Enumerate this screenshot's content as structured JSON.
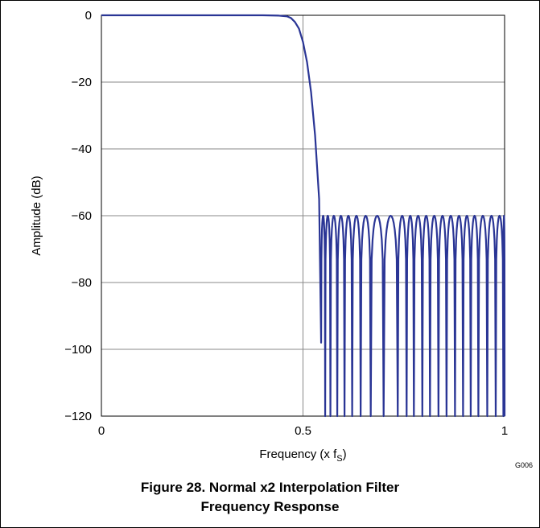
{
  "chart_data": {
    "type": "line",
    "title": "",
    "xlabel_main": "Frequency (x f",
    "xlabel_sub": "S",
    "xlabel_close": ")",
    "ylabel": "Amplitude (dB)",
    "xlim": [
      0,
      1
    ],
    "ylim": [
      -120,
      0
    ],
    "x_ticks": [
      0,
      0.5,
      1
    ],
    "x_tick_labels": [
      "0",
      "0.5",
      "1"
    ],
    "y_ticks": [
      0,
      -20,
      -40,
      -60,
      -80,
      -100,
      -120
    ],
    "y_tick_labels": [
      "0",
      "−20",
      "−40",
      "−60",
      "−80",
      "−100",
      "−120"
    ],
    "grid": true,
    "series_color": "#2a3595",
    "passband": [
      [
        0,
        0
      ],
      [
        0.4,
        0
      ],
      [
        0.44,
        -0.1
      ],
      [
        0.46,
        -0.3
      ],
      [
        0.47,
        -0.8
      ],
      [
        0.48,
        -2
      ],
      [
        0.49,
        -4
      ],
      [
        0.5,
        -8
      ],
      [
        0.51,
        -14
      ],
      [
        0.52,
        -23
      ],
      [
        0.53,
        -36
      ],
      [
        0.54,
        -55
      ]
    ],
    "stopband_peak": -60,
    "stopband_nulls": [
      [
        0.545,
        -98
      ],
      [
        0.555,
        -101
      ],
      [
        0.568,
        -102
      ],
      [
        0.585,
        -100
      ],
      [
        0.603,
        -100
      ],
      [
        0.622,
        -100
      ],
      [
        0.643,
        -100
      ],
      [
        0.668,
        -100
      ],
      [
        0.7,
        -108
      ],
      [
        0.735,
        -100
      ],
      [
        0.757,
        -120
      ],
      [
        0.775,
        -100
      ],
      [
        0.796,
        -120
      ],
      [
        0.815,
        -100
      ],
      [
        0.836,
        -120
      ],
      [
        0.856,
        -100
      ],
      [
        0.877,
        -102
      ],
      [
        0.897,
        -103
      ],
      [
        0.916,
        -120
      ],
      [
        0.935,
        -103
      ],
      [
        0.957,
        -100
      ],
      [
        0.978,
        -99
      ],
      [
        0.997,
        -99
      ]
    ],
    "figure_code": "G006"
  },
  "caption": {
    "line1": "Figure 28. Normal x2 Interpolation Filter",
    "line2": "Frequency Response"
  }
}
